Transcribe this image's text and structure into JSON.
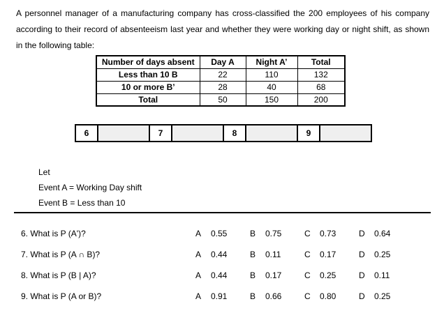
{
  "intro": "A personnel manager of a manufacturing company has cross-classified the 200 employees of his company according to their record of absenteeism last year and whether they were working day or night shift, as shown in the following table:",
  "table": {
    "headers": [
      "Number of days absent",
      "Day A",
      "Night A’",
      "Total"
    ],
    "rows": [
      {
        "label": "Less than 10 B",
        "values": [
          "22",
          "110",
          "132"
        ]
      },
      {
        "label": "10 or more B’",
        "values": [
          "28",
          "40",
          "68"
        ]
      },
      {
        "label": "Total",
        "values": [
          "50",
          "150",
          "200"
        ]
      }
    ]
  },
  "answer_strip": {
    "items": [
      {
        "number": "6",
        "answer": ""
      },
      {
        "number": "7",
        "answer": ""
      },
      {
        "number": "8",
        "answer": ""
      },
      {
        "number": "9",
        "answer": ""
      }
    ]
  },
  "definitions": {
    "let_label": "Let",
    "event_a": "Event A = Working Day shift",
    "event_b": "Event B = Less than 10"
  },
  "questions": [
    {
      "text": "6. What is P (A')?",
      "options": [
        {
          "letter": "A",
          "value": "0.55"
        },
        {
          "letter": "B",
          "value": "0.75"
        },
        {
          "letter": "C",
          "value": "0.73"
        },
        {
          "letter": "D",
          "value": "0.64"
        }
      ]
    },
    {
      "text": "7. What is P (A ∩ B)?",
      "options": [
        {
          "letter": "A",
          "value": "0.44"
        },
        {
          "letter": "B",
          "value": "0.11"
        },
        {
          "letter": "C",
          "value": "0.17"
        },
        {
          "letter": "D",
          "value": "0.25"
        }
      ]
    },
    {
      "text": "8. What is P (B | A)?",
      "options": [
        {
          "letter": "A",
          "value": "0.44"
        },
        {
          "letter": "B",
          "value": "0.17"
        },
        {
          "letter": "C",
          "value": "0.25"
        },
        {
          "letter": "D",
          "value": "0.11"
        }
      ]
    },
    {
      "text": "9. What is P (A or B)?",
      "options": [
        {
          "letter": "A",
          "value": "0.91"
        },
        {
          "letter": "B",
          "value": "0.66"
        },
        {
          "letter": "C",
          "value": "0.80"
        },
        {
          "letter": "D",
          "value": "0.25"
        }
      ]
    }
  ],
  "colors": {
    "background": "#ffffff",
    "text": "#000000",
    "border": "#000000",
    "answer_blank_fill": "#efefef"
  }
}
